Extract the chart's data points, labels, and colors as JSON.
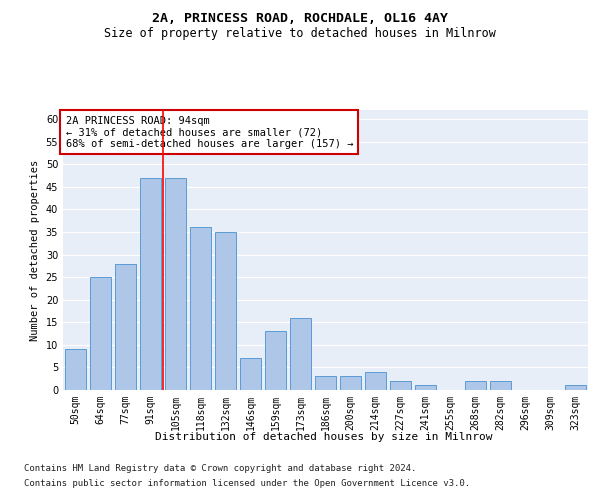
{
  "title1": "2A, PRINCESS ROAD, ROCHDALE, OL16 4AY",
  "title2": "Size of property relative to detached houses in Milnrow",
  "xlabel": "Distribution of detached houses by size in Milnrow",
  "ylabel": "Number of detached properties",
  "categories": [
    "50sqm",
    "64sqm",
    "77sqm",
    "91sqm",
    "105sqm",
    "118sqm",
    "132sqm",
    "146sqm",
    "159sqm",
    "173sqm",
    "186sqm",
    "200sqm",
    "214sqm",
    "227sqm",
    "241sqm",
    "255sqm",
    "268sqm",
    "282sqm",
    "296sqm",
    "309sqm",
    "323sqm"
  ],
  "values": [
    9,
    25,
    28,
    47,
    47,
    36,
    35,
    7,
    13,
    16,
    3,
    3,
    4,
    2,
    1,
    0,
    2,
    2,
    0,
    0,
    1
  ],
  "bar_color": "#aec6e8",
  "bar_edge_color": "#5b9bd5",
  "red_line_x": 3.5,
  "annotation_text": "2A PRINCESS ROAD: 94sqm\n← 31% of detached houses are smaller (72)\n68% of semi-detached houses are larger (157) →",
  "annotation_box_color": "#ffffff",
  "annotation_box_edge": "#cc0000",
  "ylim": [
    0,
    62
  ],
  "yticks": [
    0,
    5,
    10,
    15,
    20,
    25,
    30,
    35,
    40,
    45,
    50,
    55,
    60
  ],
  "footnote1": "Contains HM Land Registry data © Crown copyright and database right 2024.",
  "footnote2": "Contains public sector information licensed under the Open Government Licence v3.0.",
  "bg_color": "#e8eef8",
  "fig_bg_color": "#ffffff",
  "title1_fontsize": 9.5,
  "title2_fontsize": 8.5,
  "xlabel_fontsize": 8,
  "ylabel_fontsize": 7.5,
  "tick_fontsize": 7,
  "annot_fontsize": 7.5,
  "footnote_fontsize": 6.5
}
